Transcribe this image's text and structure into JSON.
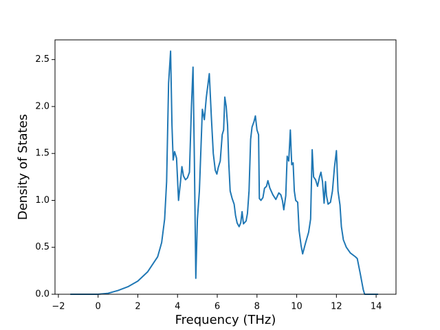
{
  "chart_data": {
    "type": "line",
    "xlabel": "Frequency (THz)",
    "ylabel": "Density of States",
    "xlim": [
      -2.17,
      15.0
    ],
    "ylim": [
      0,
      2.71
    ],
    "xticks": [
      {
        "value": -2,
        "label": "−2"
      },
      0,
      2,
      4,
      6,
      8,
      10,
      12,
      14
    ],
    "yticks": [
      {
        "value": 0,
        "label": "0.0"
      },
      {
        "value": 0.5,
        "label": "0.5"
      },
      {
        "value": 1,
        "label": "1.0"
      },
      {
        "value": 1.5,
        "label": "1.5"
      },
      {
        "value": 2,
        "label": "2.0"
      },
      {
        "value": 2.5,
        "label": "2.5"
      }
    ],
    "series": [
      {
        "color": "#1f77b4",
        "x": [
          -1.4,
          0,
          0.5,
          1,
          1.5,
          2,
          2.5,
          3,
          3.2,
          3.35,
          3.45,
          3.55,
          3.65,
          3.72,
          3.78,
          3.85,
          3.95,
          4.05,
          4.15,
          4.22,
          4.3,
          4.4,
          4.5,
          4.6,
          4.7,
          4.78,
          4.85,
          4.92,
          5.0,
          5.1,
          5.25,
          5.35,
          5.45,
          5.6,
          5.7,
          5.8,
          5.9,
          5.98,
          6.05,
          6.15,
          6.25,
          6.32,
          6.38,
          6.45,
          6.52,
          6.58,
          6.65,
          6.75,
          6.85,
          6.92,
          7.0,
          7.1,
          7.18,
          7.25,
          7.32,
          7.45,
          7.52,
          7.6,
          7.68,
          7.75,
          7.85,
          7.92,
          8.0,
          8.08,
          8.12,
          8.2,
          8.3,
          8.38,
          8.48,
          8.55,
          8.65,
          8.8,
          8.95,
          9.1,
          9.2,
          9.28,
          9.35,
          9.45,
          9.52,
          9.6,
          9.68,
          9.75,
          9.82,
          9.88,
          9.95,
          10.05,
          10.12,
          10.22,
          10.3,
          10.45,
          10.6,
          10.7,
          10.78,
          10.85,
          10.95,
          11.05,
          11.15,
          11.22,
          11.3,
          11.38,
          11.45,
          11.5,
          11.58,
          11.7,
          11.8,
          11.9,
          12.0,
          12.08,
          12.18,
          12.25,
          12.35,
          12.5,
          12.7,
          12.95,
          13.05,
          13.2,
          13.35,
          13.42,
          14.1
        ],
        "values": [
          0,
          0,
          0.01,
          0.04,
          0.08,
          0.14,
          0.24,
          0.4,
          0.55,
          0.8,
          1.2,
          2.25,
          2.59,
          1.8,
          1.43,
          1.52,
          1.45,
          1.0,
          1.2,
          1.36,
          1.26,
          1.22,
          1.24,
          1.3,
          2.0,
          2.42,
          1.4,
          0.17,
          0.8,
          1.1,
          1.97,
          1.86,
          2.1,
          2.35,
          1.9,
          1.5,
          1.32,
          1.28,
          1.35,
          1.42,
          1.7,
          1.75,
          2.1,
          2.0,
          1.8,
          1.4,
          1.1,
          1.02,
          0.96,
          0.84,
          0.76,
          0.72,
          0.76,
          0.88,
          0.75,
          0.78,
          0.86,
          1.1,
          1.65,
          1.78,
          1.84,
          1.9,
          1.75,
          1.7,
          1.02,
          1.0,
          1.03,
          1.13,
          1.15,
          1.21,
          1.13,
          1.06,
          1.01,
          1.08,
          1.06,
          1.0,
          0.9,
          1.05,
          1.47,
          1.42,
          1.75,
          1.38,
          1.4,
          1.1,
          1.0,
          0.98,
          0.68,
          0.52,
          0.43,
          0.55,
          0.66,
          0.8,
          1.54,
          1.25,
          1.22,
          1.15,
          1.25,
          1.3,
          1.2,
          0.97,
          1.2,
          1.05,
          0.96,
          0.98,
          1.1,
          1.35,
          1.53,
          1.1,
          0.95,
          0.72,
          0.58,
          0.5,
          0.44,
          0.4,
          0.38,
          0.22,
          0.05,
          0,
          0
        ]
      }
    ]
  }
}
